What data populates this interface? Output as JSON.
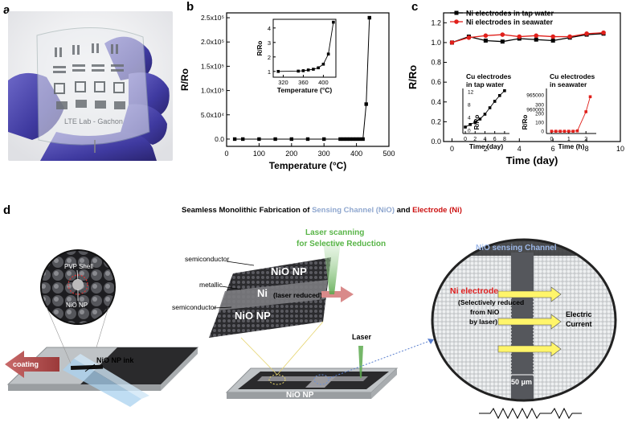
{
  "panels": {
    "a": {
      "label": "a",
      "chip_text": "LTE Lab - Gachon"
    },
    "b": {
      "label": "b"
    },
    "c": {
      "label": "c"
    },
    "d": {
      "label": "d"
    }
  },
  "chart_data": [
    {
      "panel": "b",
      "type": "scatter",
      "xlabel": "Temperature (°C)",
      "ylabel": "R/Ro",
      "xlim": [
        0,
        500
      ],
      "ylim": [
        -15000,
        260000
      ],
      "xticks": [
        "0",
        "100",
        "200",
        "300",
        "400",
        "500"
      ],
      "yticks": [
        "0.0",
        "5.0x10⁴",
        "1.0x10⁵",
        "1.5x10⁵",
        "2.0x10⁵",
        "2.5x10⁵"
      ],
      "ytick_values": [
        0,
        50000,
        100000,
        150000,
        200000,
        250000
      ],
      "series": [
        {
          "x": [
            25,
            50,
            100,
            150,
            200,
            250,
            300,
            350,
            360,
            370,
            380,
            390,
            400,
            410,
            420,
            430,
            440
          ],
          "y": [
            1,
            1,
            1,
            1,
            1,
            1,
            1,
            1,
            1,
            1,
            1,
            1,
            1,
            2,
            5,
            72000,
            250000
          ]
        }
      ],
      "inset": {
        "xlabel": "Temperature (°C)",
        "ylabel": "R/Ro",
        "xticks": [
          "320",
          "360",
          "400"
        ],
        "yticks": [
          "1",
          "2",
          "3",
          "4"
        ],
        "xlim": [
          300,
          425
        ],
        "ylim": [
          0.6,
          4.6
        ],
        "x": [
          310,
          350,
          360,
          370,
          380,
          390,
          400,
          410,
          420
        ],
        "y": [
          1,
          1.02,
          1.05,
          1.1,
          1.15,
          1.25,
          1.5,
          2.2,
          4.4
        ]
      }
    },
    {
      "panel": "c",
      "type": "line",
      "xlabel": "Time (day)",
      "ylabel": "R/Ro",
      "xlim": [
        -0.5,
        10
      ],
      "ylim": [
        0,
        1.3
      ],
      "xticks": [
        "0",
        "2",
        "4",
        "6",
        "8",
        "10"
      ],
      "yticks": [
        "0.0",
        "0.2",
        "0.4",
        "0.6",
        "0.8",
        "1.0",
        "1.2"
      ],
      "series": [
        {
          "name": "Ni electrodes  in tap water",
          "color": "#000000",
          "x": [
            0,
            1,
            2,
            3,
            4,
            5,
            6,
            7,
            8,
            9
          ],
          "y": [
            1.0,
            1.06,
            1.02,
            1.01,
            1.04,
            1.03,
            1.02,
            1.05,
            1.08,
            1.09
          ]
        },
        {
          "name": "Ni electrodes  in seawater",
          "color": "#e0201b",
          "x": [
            0,
            1,
            2,
            3,
            4,
            5,
            6,
            7,
            8,
            9
          ],
          "y": [
            1.0,
            1.05,
            1.07,
            1.08,
            1.06,
            1.07,
            1.06,
            1.06,
            1.09,
            1.1
          ]
        }
      ],
      "insets": [
        {
          "title": [
            "Cu electrodes",
            "in tap water"
          ],
          "xlabel": "Time (day)",
          "ylabel": "R/Ro",
          "xticks": [
            "0",
            "2",
            "4",
            "6",
            "8"
          ],
          "yticks": [
            "0",
            "4",
            "8",
            "12"
          ],
          "xlim": [
            -0.5,
            9
          ],
          "ylim": [
            -1,
            13
          ],
          "x": [
            0,
            1,
            2,
            3,
            4,
            5,
            6,
            7,
            8
          ],
          "y": [
            1,
            1.8,
            2.5,
            3.5,
            5,
            7,
            9,
            10.8,
            12.3
          ],
          "color": "#000000"
        },
        {
          "title": [
            "Cu electrodes",
            "in seawater"
          ],
          "xlabel": "Time (h)",
          "ylabel": "R/Ro",
          "xticks": [
            "0",
            "1",
            "2"
          ],
          "yticks": [
            "0",
            "100",
            "200",
            "300",
            "960000",
            "965000"
          ],
          "xlim": [
            -0.3,
            2.6
          ],
          "ylim": [
            0,
            6
          ],
          "x": [
            0,
            0.25,
            0.5,
            0.75,
            1,
            1.25,
            1.5,
            2.0,
            2.25
          ],
          "y": [
            0.3,
            0.3,
            0.3,
            0.3,
            0.3,
            0.3,
            0.35,
            2.9,
            4.9
          ],
          "color": "#e0201b"
        }
      ]
    }
  ],
  "diagram_d": {
    "title_parts": [
      {
        "text": "Seamless Monolithic Fabrication of ",
        "color": "#000000"
      },
      {
        "text": "Sensing Channel (NiO)",
        "color": "#8fa7cf"
      },
      {
        "text": " and ",
        "color": "#000000"
      },
      {
        "text": "Electrode (Ni)",
        "color": "#cc1111"
      }
    ],
    "pvp_shell": "PVP Shell",
    "nio_np_small": "NiO NP",
    "coating": "coating",
    "nio_np_ink": "NiO NP ink",
    "semiconductor": "semiconductor",
    "metallic": "metallic",
    "nio_np_big": "NiO NP",
    "ni_layer": "Ni",
    "laser_reduced": "(laser reduced)",
    "laser_scanning": [
      "Laser scanning",
      "for Selective Reduction"
    ],
    "laser": "Laser",
    "nio_np_substrate": "NiO NP",
    "nio_channel": "NiO sensing Channel",
    "ni_electrode": "Ni electrode",
    "reduce_note": [
      "(Selectively reduced",
      "from NiO",
      "by laser)"
    ],
    "electric_current": [
      "Electric",
      "Current"
    ],
    "scale": "50 μm"
  }
}
